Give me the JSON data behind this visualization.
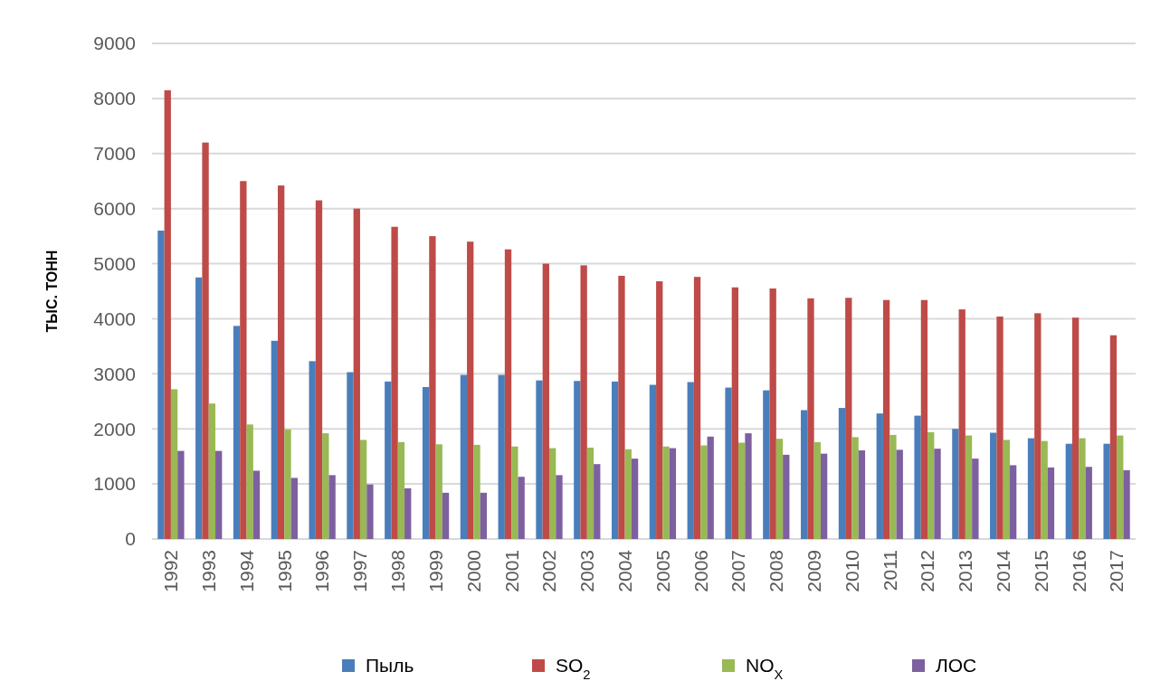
{
  "chart_data": {
    "type": "bar",
    "ylabel": "ТЫС. ТОНН",
    "categories": [
      "1992",
      "1993",
      "1994",
      "1995",
      "1996",
      "1997",
      "1998",
      "1999",
      "2000",
      "2001",
      "2002",
      "2003",
      "2004",
      "2005",
      "2006",
      "2007",
      "2008",
      "2009",
      "2010",
      "2011",
      "2012",
      "2013",
      "2014",
      "2015",
      "2016",
      "2017"
    ],
    "series": [
      {
        "name": "Пыль",
        "color": "#4a7ebb",
        "values": [
          5600,
          4750,
          3870,
          3600,
          3230,
          3030,
          2860,
          2760,
          2980,
          2980,
          2880,
          2870,
          2860,
          2800,
          2850,
          2750,
          2700,
          2340,
          2380,
          2280,
          2240,
          2000,
          1930,
          1830,
          1730,
          1730
        ]
      },
      {
        "name": "SO$_{2}$",
        "color": "#be4b48",
        "values": [
          8150,
          7200,
          6500,
          6420,
          6150,
          6000,
          5670,
          5500,
          5400,
          5260,
          5000,
          4970,
          4780,
          4680,
          4760,
          4570,
          4550,
          4370,
          4380,
          4340,
          4340,
          4170,
          4040,
          4100,
          4020,
          3700
        ]
      },
      {
        "name": "NO$_{X}$",
        "color": "#98b954",
        "values": [
          2720,
          2460,
          2080,
          1990,
          1920,
          1800,
          1760,
          1720,
          1710,
          1680,
          1650,
          1660,
          1630,
          1680,
          1700,
          1750,
          1820,
          1760,
          1850,
          1890,
          1940,
          1880,
          1800,
          1780,
          1830,
          1880
        ]
      },
      {
        "name": "ЛОС",
        "color": "#7d60a0",
        "values": [
          1600,
          1600,
          1240,
          1110,
          1160,
          990,
          920,
          840,
          840,
          1130,
          1160,
          1360,
          1460,
          1650,
          1860,
          1920,
          1530,
          1550,
          1610,
          1620,
          1640,
          1460,
          1340,
          1300,
          1310,
          1250
        ]
      }
    ],
    "ylim": [
      0,
      9000
    ],
    "yticks": [
      0,
      1000,
      2000,
      3000,
      4000,
      5000,
      6000,
      7000,
      8000,
      9000
    ],
    "grid": "y",
    "legend": "bottom"
  }
}
